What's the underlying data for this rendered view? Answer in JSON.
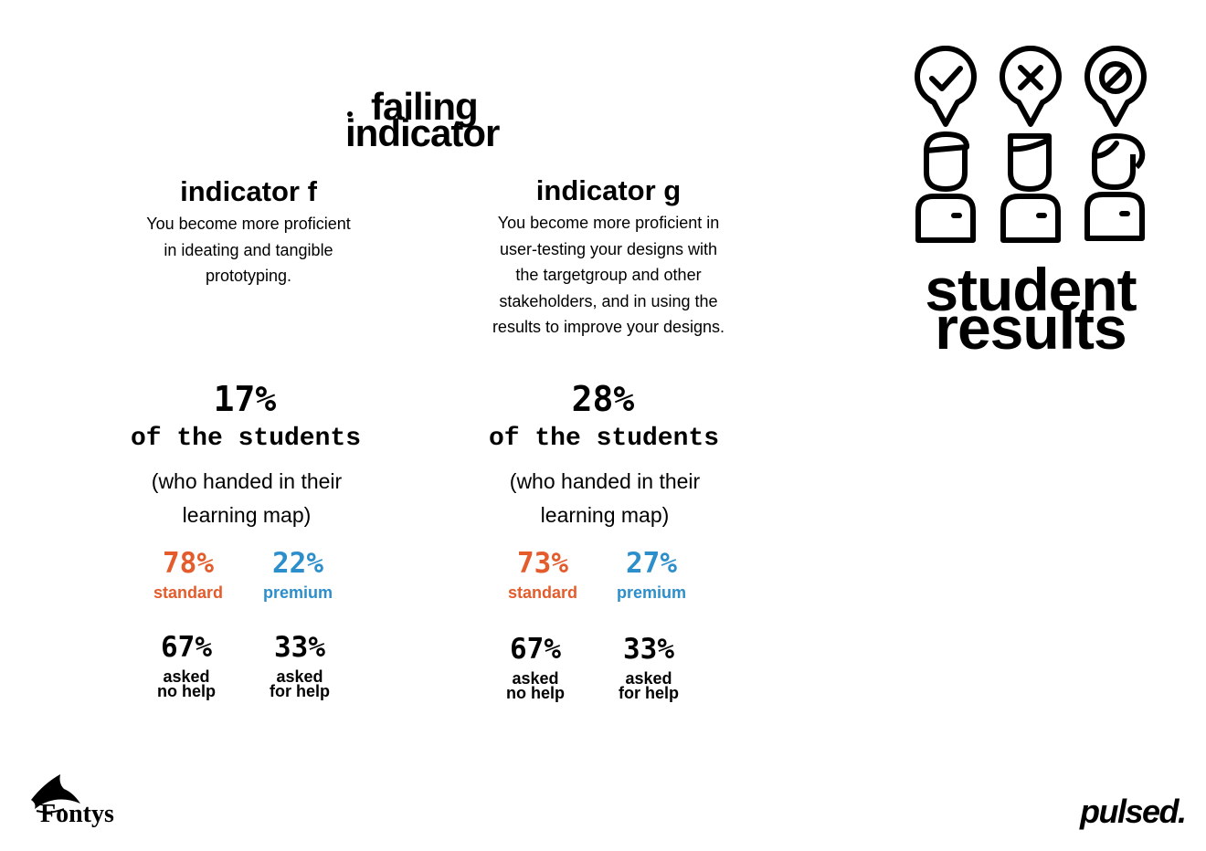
{
  "header": {
    "title_line1": "failing",
    "title_line2": "indicator"
  },
  "indicators": [
    {
      "heading": "indicator f",
      "description_lines": [
        "You become more proficient",
        "in ideating and tangible",
        "prototyping."
      ],
      "percent": "17%",
      "of_students": "of the students",
      "note_lines": [
        "(who handed in their",
        "learning map)"
      ],
      "standard": {
        "value": "78%",
        "label": "standard"
      },
      "premium": {
        "value": "22%",
        "label": "premium"
      },
      "no_help": {
        "value": "67%",
        "label_lines": [
          "asked",
          "no help"
        ]
      },
      "for_help": {
        "value": "33%",
        "label_lines": [
          "asked",
          "for help"
        ]
      }
    },
    {
      "heading": "indicator g",
      "description_lines": [
        "You become more proficient in",
        "user-testing your designs with",
        "the targetgroup and other",
        "stakeholders, and in using the",
        "results to improve your designs."
      ],
      "percent": "28%",
      "of_students": "of the students",
      "note_lines": [
        "(who handed in their",
        "learning map)"
      ],
      "standard": {
        "value": "73%",
        "label": "standard"
      },
      "premium": {
        "value": "27%",
        "label": "premium"
      },
      "no_help": {
        "value": "67%",
        "label_lines": [
          "asked",
          "no help"
        ]
      },
      "for_help": {
        "value": "33%",
        "label_lines": [
          "asked",
          "for help"
        ]
      }
    }
  ],
  "side": {
    "line1": "student",
    "line2": "results",
    "icons": [
      "check-bubble-icon",
      "cross-bubble-icon",
      "forbidden-bubble-icon",
      "student-avatar-icon"
    ]
  },
  "logos": {
    "fontys": "Fontys",
    "pulsed": "pulsed."
  },
  "colors": {
    "standard": "#e45c2c",
    "premium": "#2c8ecb",
    "text": "#000000"
  }
}
